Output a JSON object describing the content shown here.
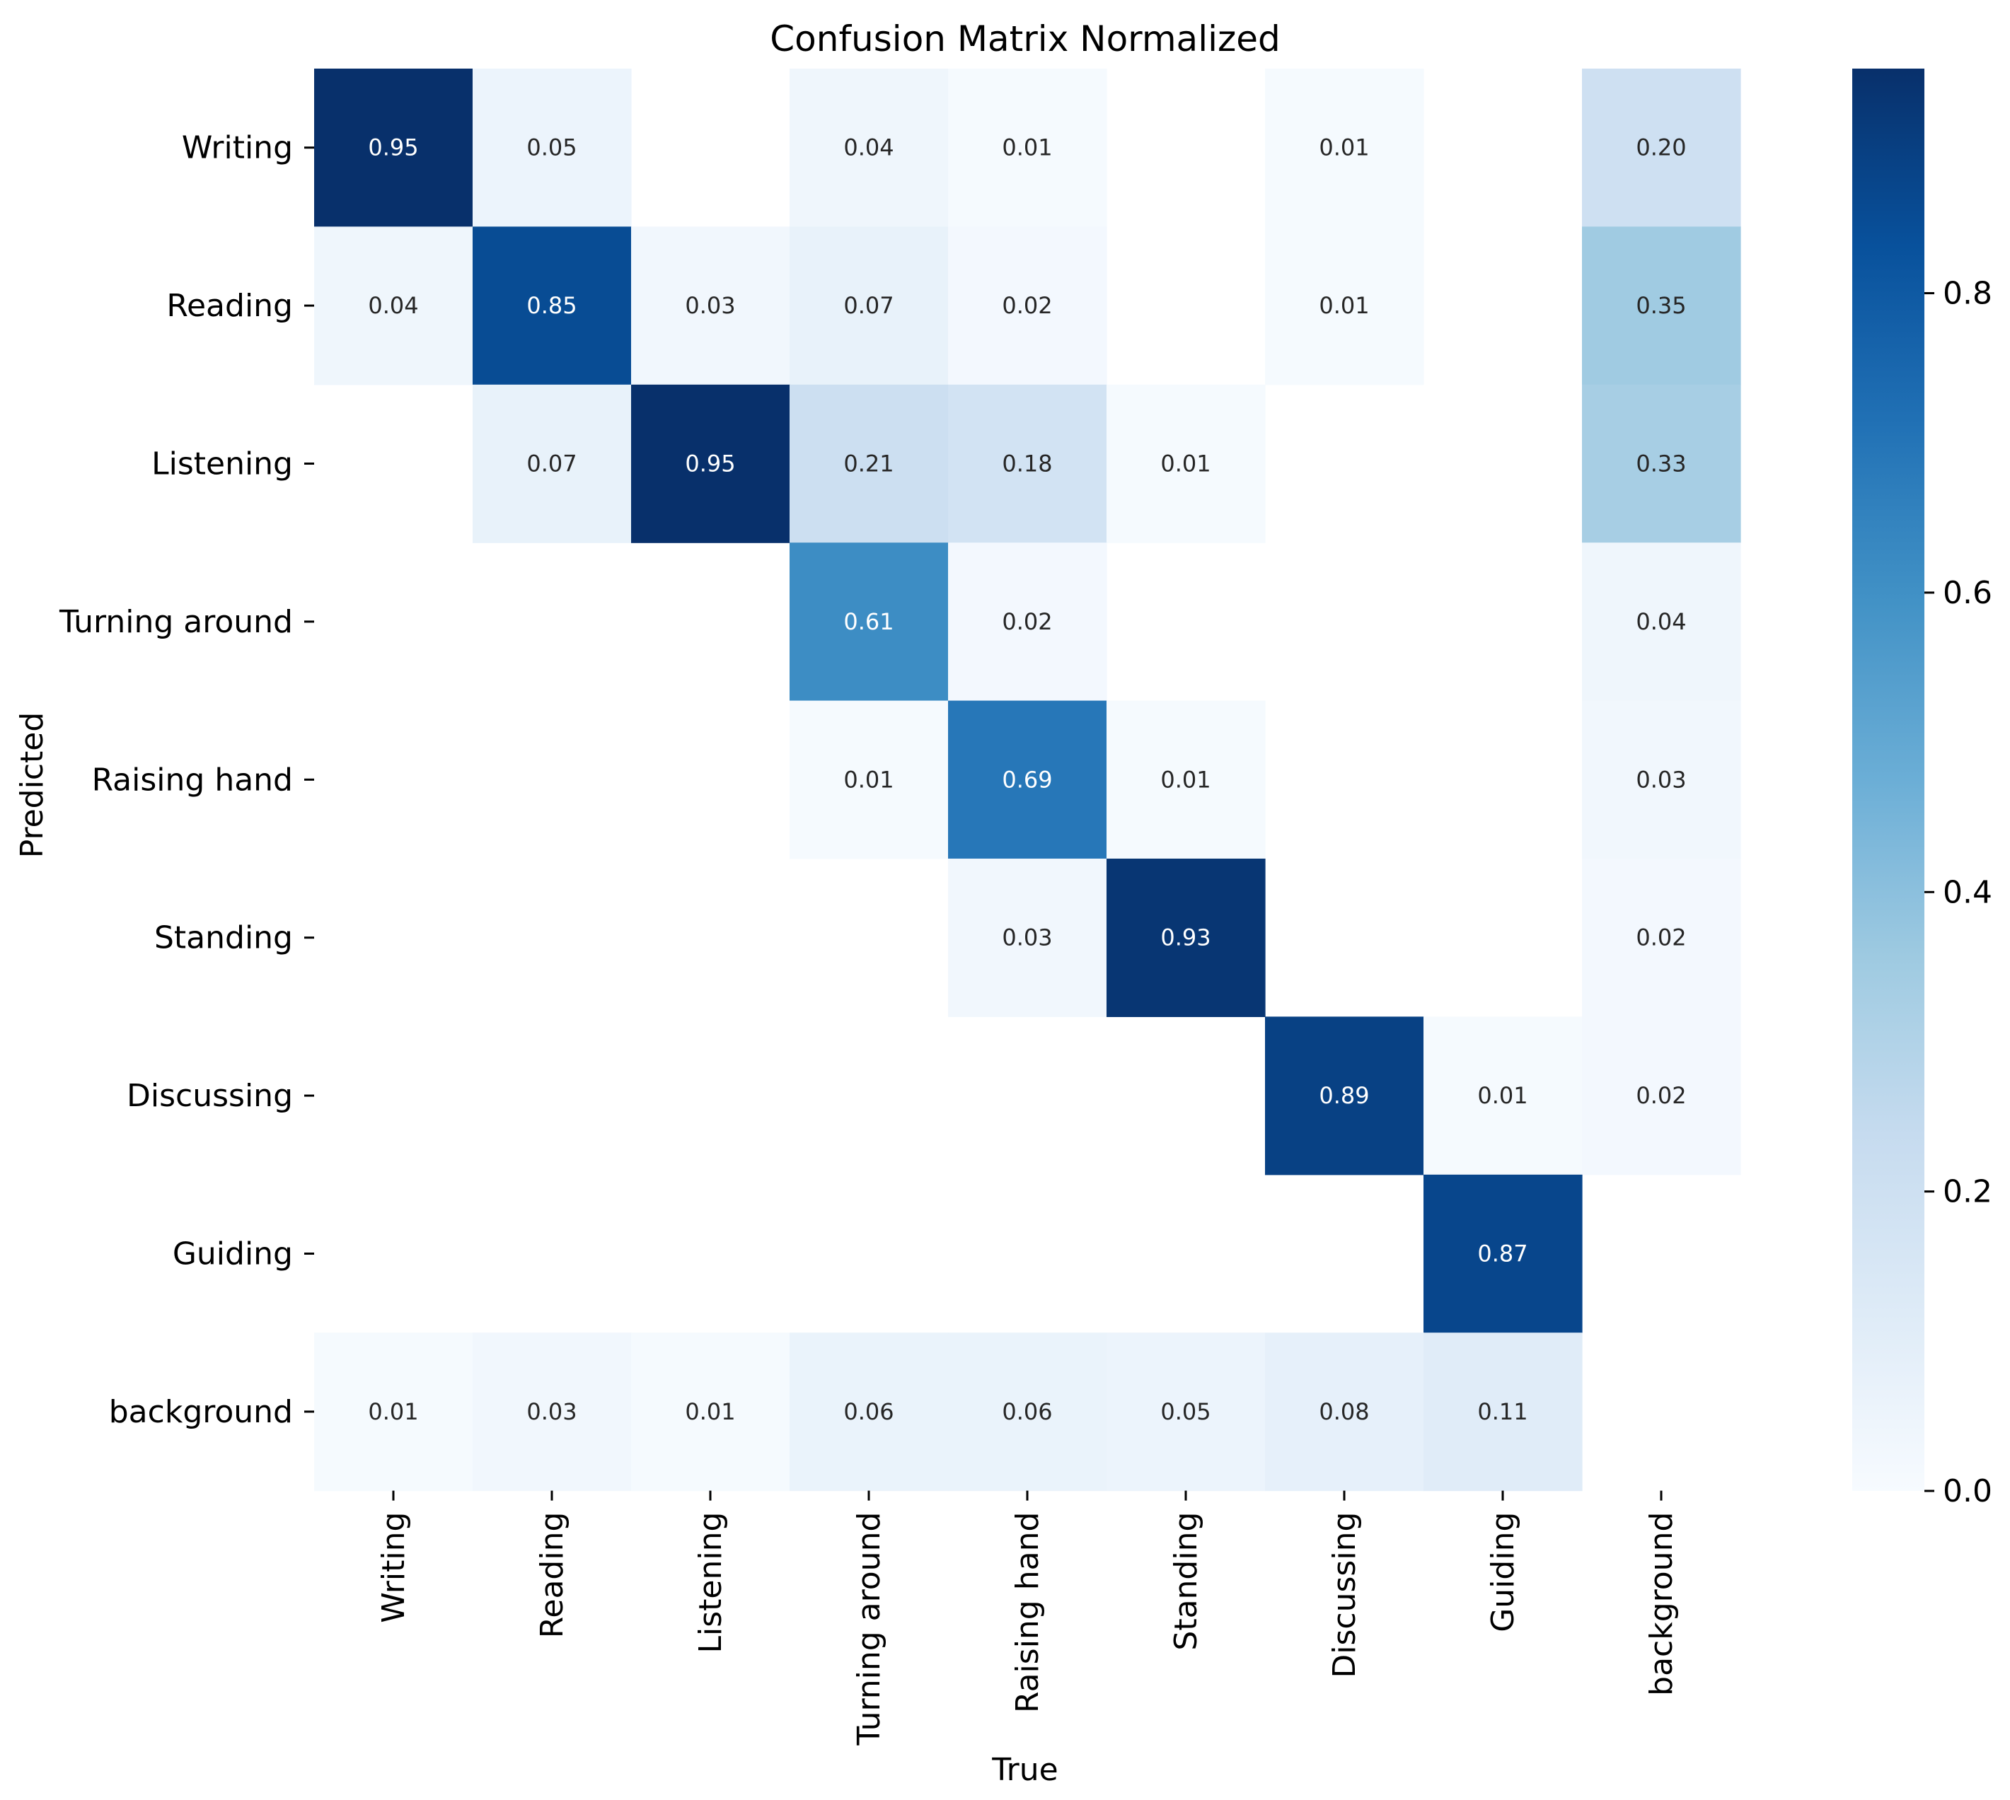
{
  "chart_data": {
    "type": "heatmap",
    "title": "Confusion Matrix Normalized",
    "xlabel": "True",
    "ylabel": "Predicted",
    "x_categories": [
      "Writing",
      "Reading",
      "Listening",
      "Turning around",
      "Raising hand",
      "Standing",
      "Discussing",
      "Guiding",
      "background"
    ],
    "y_categories": [
      "Writing",
      "Reading",
      "Listening",
      "Turning around",
      "Raising hand",
      "Standing",
      "Discussing",
      "Guiding",
      "background"
    ],
    "values": [
      [
        0.95,
        0.05,
        null,
        0.04,
        0.01,
        null,
        0.01,
        null,
        0.2
      ],
      [
        0.04,
        0.85,
        0.03,
        0.07,
        0.02,
        null,
        0.01,
        null,
        0.35
      ],
      [
        null,
        0.07,
        0.95,
        0.21,
        0.18,
        0.01,
        null,
        null,
        0.33
      ],
      [
        null,
        null,
        null,
        0.61,
        0.02,
        null,
        null,
        null,
        0.04
      ],
      [
        null,
        null,
        null,
        0.01,
        0.69,
        0.01,
        null,
        null,
        0.03
      ],
      [
        null,
        null,
        null,
        null,
        0.03,
        0.93,
        null,
        null,
        0.02
      ],
      [
        null,
        null,
        null,
        null,
        null,
        null,
        0.89,
        0.01,
        0.02
      ],
      [
        null,
        null,
        null,
        null,
        null,
        null,
        null,
        0.87,
        null
      ],
      [
        0.01,
        0.03,
        0.01,
        0.06,
        0.06,
        0.05,
        0.08,
        0.11,
        null
      ]
    ],
    "labels": [
      [
        "0.95",
        "0.05",
        "",
        "0.04",
        "0.01",
        "",
        "0.01",
        "",
        "0.20"
      ],
      [
        "0.04",
        "0.85",
        "0.03",
        "0.07",
        "0.02",
        "",
        "0.01",
        "",
        "0.35"
      ],
      [
        "",
        "0.07",
        "0.95",
        "0.21",
        "0.18",
        "0.01",
        "",
        "",
        "0.33"
      ],
      [
        "",
        "",
        "",
        "0.61",
        "0.02",
        "",
        "",
        "",
        "0.04"
      ],
      [
        "",
        "",
        "",
        "0.01",
        "0.69",
        "0.01",
        "",
        "",
        "0.03"
      ],
      [
        "",
        "",
        "",
        "",
        "0.03",
        "0.93",
        "",
        "",
        "0.02"
      ],
      [
        "",
        "",
        "",
        "",
        "",
        "",
        "0.89",
        "0.01",
        "0.02"
      ],
      [
        "",
        "",
        "",
        "",
        "",
        "",
        "",
        "0.87",
        ""
      ],
      [
        "0.01",
        "0.03",
        "0.01",
        "0.06",
        "0.06",
        "0.05",
        "0.08",
        "0.11",
        ""
      ]
    ],
    "colormap": "Blues",
    "color_range": [
      0.0,
      0.95
    ],
    "colorbar": {
      "ticks": [
        0.0,
        0.2,
        0.4,
        0.6,
        0.8
      ],
      "tick_labels": [
        "0.0",
        "0.2",
        "0.4",
        "0.6",
        "0.8"
      ]
    },
    "grid": false,
    "legend": "colorbar-right"
  }
}
